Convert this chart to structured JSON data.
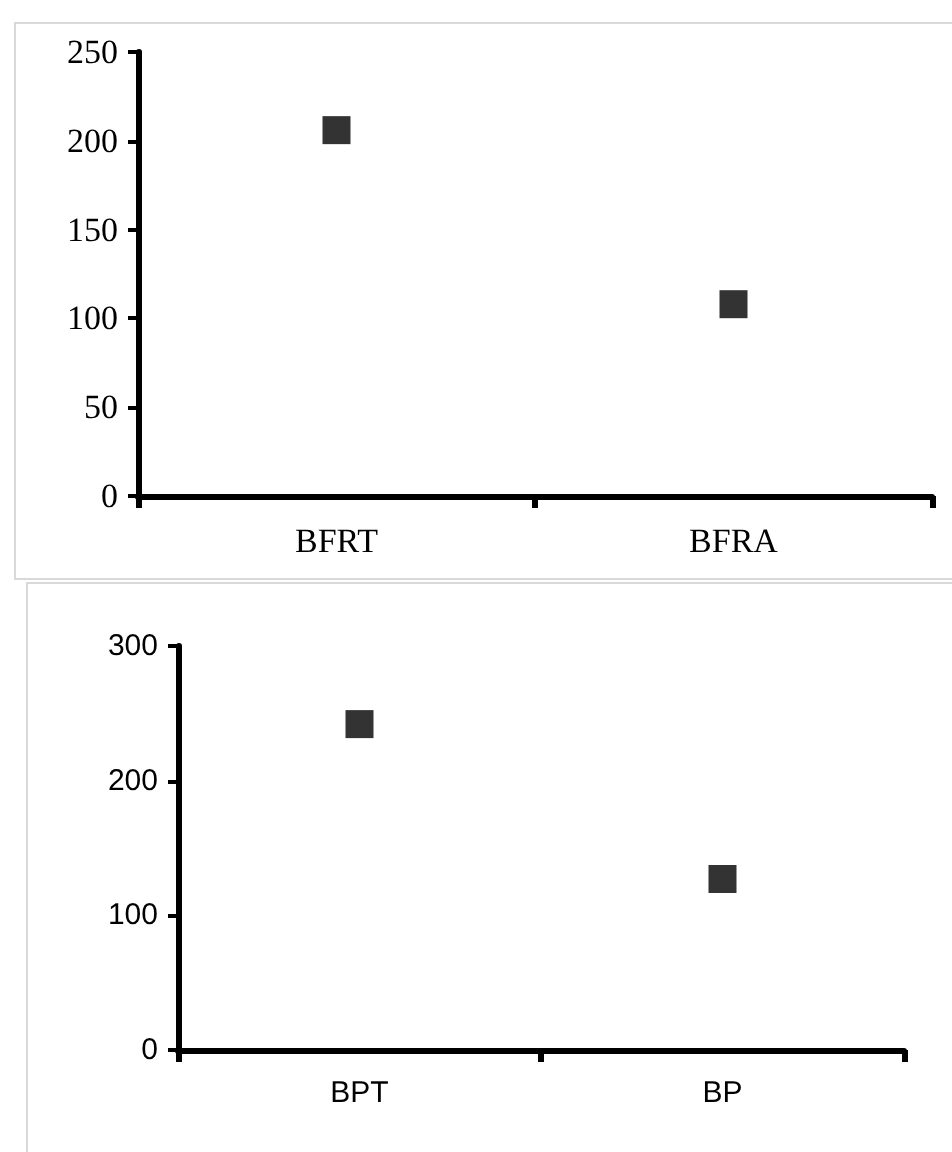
{
  "chart_data": [
    {
      "type": "scatter",
      "categories": [
        "BFRT",
        "BFRA"
      ],
      "values": [
        206,
        108
      ],
      "color": "#000000",
      "marker": "square",
      "ylim": [
        0,
        250
      ],
      "yticks": [
        0,
        50,
        100,
        150,
        200,
        250
      ]
    },
    {
      "type": "scatter",
      "categories": [
        "BPT",
        "BP"
      ],
      "values": [
        242,
        127
      ],
      "color": "#000000",
      "marker": "square",
      "ylim": [
        0,
        300
      ],
      "yticks": [
        0,
        100,
        200,
        300
      ]
    }
  ]
}
